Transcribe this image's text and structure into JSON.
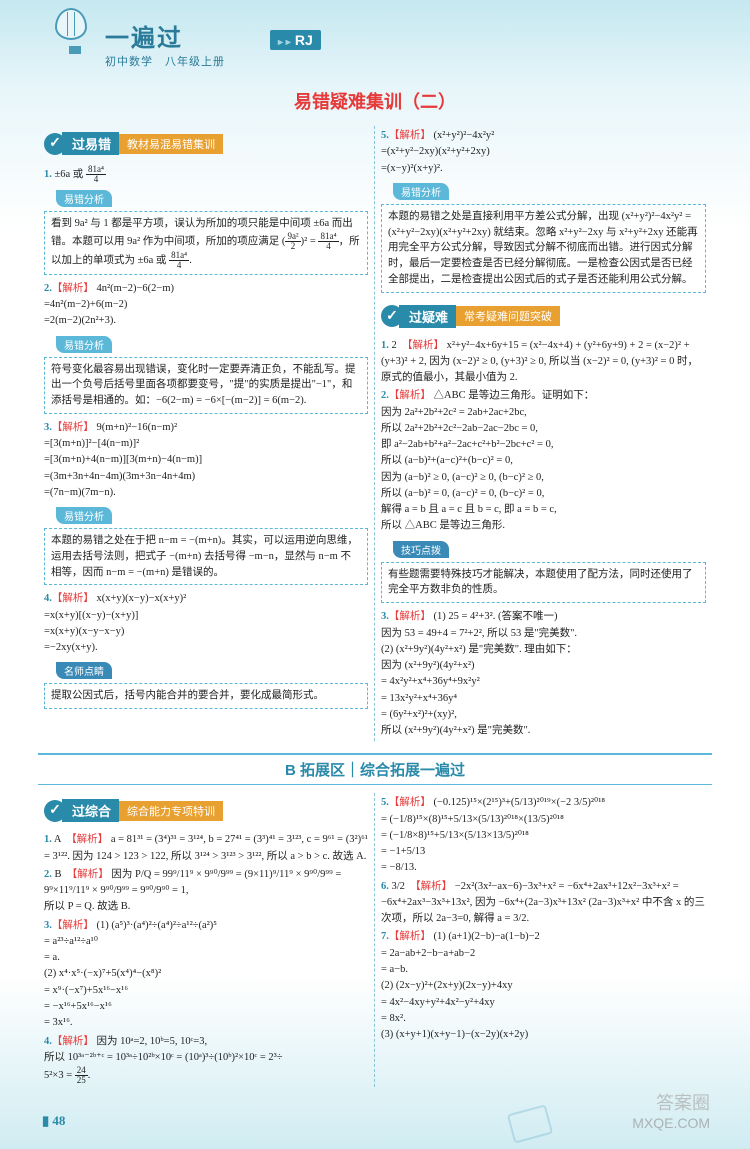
{
  "header": {
    "brand_main": "一遍过",
    "brand_sub": "初中数学　八年级上册",
    "badge": "RJ"
  },
  "page_title": "易错疑难集训（二）",
  "sections": {
    "mistakes": {
      "banner": "过易错",
      "sub": "教材易混易错集训"
    },
    "difficult": {
      "banner": "过疑难",
      "sub": "常考疑难问题突破"
    },
    "b_title": "B 拓展区｜综合拓展一遍过",
    "comprehensive": {
      "banner": "过综合",
      "sub": "综合能力专项特训"
    }
  },
  "tags": {
    "analysis": "易错分析",
    "teacher": "名师点睛",
    "skill": "技巧点拨"
  },
  "left": {
    "p1_ans": "1. ±6a 或 81a⁴/4",
    "box1": "看到 9a² 与 1 都是平方项，误认为所加的项只能是中间项 ±6a 而出错。本题可以用 9a² 作为中间项，所加的项应满足 (9a²/2)² = 81a⁴/4，所以加上的单项式为 ±6a 或 81a⁴/4。",
    "p2": "2.【解析】 4n²(m−2)−6(2−m)\n=4n²(m−2)+6(m−2)\n=2(m−2)(2n²+3).",
    "box2": "符号变化最容易出现错误，变化时一定要弄清正负，不能乱写。提出一个负号后括号里面各项都要变号，\"提\"的实质是提出\"−1\"，和添括号是相通的。如：−6(2−m) = −6×[−(m−2)] = 6(m−2).",
    "p3": "3.【解析】 9(m+n)²−16(n−m)²\n=[3(m+n)]²−[4(n−m)]²\n=[3(m+n)+4(n−m)][3(m+n)−4(n−m)]\n=(3m+3n+4n−4m)(3m+3n−4n+4m)\n=(7n−m)(7m−n).",
    "box3": "本题的易错之处在于把 n−m = −(m+n)。其实，可以运用逆向思维，运用去括号法则，把式子 −(m+n) 去括号得 −m−n，显然与 n−m 不相等，因而 n−m = −(m+n) 是错误的。",
    "p4": "4.【解析】 x(x+y)(x−y)−x(x+y)²\n=x(x+y)[(x−y)−(x+y)]\n=x(x+y)(x−y−x−y)\n=−2xy(x+y).",
    "box4": "提取公因式后，括号内能合并的要合并，要化成最简形式。"
  },
  "right": {
    "p5": "5.【解析】 (x²+y²)²−4x²y²\n=(x²+y²−2xy)(x²+y²+2xy)\n=(x−y)²(x+y)².",
    "box5": "本题的易错之处是直接利用平方差公式分解，出现 (x²+y²)²−4x²y² = (x²+y²−2xy)(x²+y²+2xy) 就结束。忽略 x²+y²−2xy 与 x²+y²+2xy 还能再用完全平方公式分解，导致因式分解不彻底而出错。进行因式分解时，最后一定要检查是否已经分解彻底。一是检查公因式是否已经全部提出，二是检查提出公因式后的式子是否还能利用公式分解。",
    "d1": "1. 2　【解析】 x²+y²−4x+6y+15 = (x²−4x+4) + (y²+6y+9) + 2 = (x−2)² + (y+3)² + 2, 因为 (x−2)² ≥ 0, (y+3)² ≥ 0, 所以当 (x−2)² = 0, (y+3)² = 0 时，原式的值最小，其最小值为 2.",
    "d2": "2.【解析】 △ABC 是等边三角形。证明如下：\n因为 2a²+2b²+2c² = 2ab+2ac+2bc,\n所以 2a²+2b²+2c²−2ab−2ac−2bc = 0,\n即 a²−2ab+b²+a²−2ac+c²+b²−2bc+c² = 0,\n所以 (a−b)²+(a−c)²+(b−c)² = 0,\n因为 (a−b)² ≥ 0, (a−c)² ≥ 0, (b−c)² ≥ 0,\n所以 (a−b)² = 0, (a−c)² = 0, (b−c)² = 0,\n解得 a = b 且 a = c 且 b = c, 即 a = b = c,\n所以 △ABC 是等边三角形.",
    "box_skill": "有些题需要特殊技巧才能解决，本题使用了配方法，同时还使用了完全平方数非负的性质。",
    "d3": "3.【解析】 (1) 25 = 4²+3². (答案不唯一)\n因为 53 = 49+4 = 7²+2², 所以 53 是\"完美数\".\n(2) (x²+9y²)(4y²+x²) 是\"完美数\". 理由如下：\n因为 (x²+9y²)(4y²+x²)\n= 4x²y²+x⁴+36y⁴+9x²y²\n= 13x²y²+x⁴+36y⁴\n= (6y²+x²)²+(xy)²,\n所以 (x²+9y²)(4y²+x²) 是\"完美数\"."
  },
  "comp_left": {
    "c1": "1. A　【解析】 a = 81³¹ = (3⁴)³¹ = 3¹²⁴, b = 27⁴¹ = (3³)⁴¹ = 3¹²³, c = 9⁶¹ = (3²)⁶¹ = 3¹²². 因为 124 > 123 > 122, 所以 3¹²⁴ > 3¹²³ > 3¹²², 所以 a > b > c. 故选 A.",
    "c2": "2. B　【解析】 因为 P/Q = 99⁹/11⁹ × 9⁹⁰/9⁹⁹ = (9×11)⁹/11⁹ × 9⁹⁰/9⁹⁹ = 9⁹×11⁹/11⁹ × 9⁹⁰/9⁹⁹ = 9⁹⁰/9⁹⁰ = 1,\n所以 P = Q. 故选 B.",
    "c3": "3.【解析】 (1) (a⁵)³·(a⁴)²÷(a⁴)²÷a¹²÷(a²)⁵\n= a²³÷a¹²÷a¹⁰\n= a.\n(2) x⁴·x⁵·(−x)⁷+5(x⁴)⁴−(x⁸)²\n= x⁹·(−x⁷)+5x¹⁶−x¹⁶\n= −x¹⁶+5x¹⁶−x¹⁶\n= 3x¹⁶.",
    "c4": "4.【解析】 因为 10ᵃ = 2, 10ᵇ = 5, 10ᶜ = 3,\n所以 10³ᵃ⁻²ᵇ⁺ᶜ = 10³ᵃ÷10²ᵇ×10ᶜ = (10ᵃ)³÷(10ᵇ)²×10ᶜ = 2³÷5²×3 = 24/25."
  },
  "comp_right": {
    "c5": "5.【解析】 (−0.125)¹⁵×(2¹⁵)³+(5/13)²⁰¹⁹×(−2 3/5)²⁰¹⁸\n= (−1/8)¹⁵×(8)¹⁵+5/13×(5/13)²⁰¹⁸×(13/5)²⁰¹⁸\n= (−1/8×8)¹⁵+5/13×(5/13×13/5)²⁰¹⁸\n= −1+5/13\n= −8/13.",
    "c6": "6. 3/2　【解析】 −2x²(3x²−ax−6)−3x³+x² = −6x⁴+2ax³+12x²−3x³+x² = −6x⁴+2ax³−3x³+13x², 因为 −6x⁴+(2a−3)x³+13x² (2a−3)x³+x² 中不含 x 的三次项，所以 2a−3=0, 解得 a = 3/2.",
    "c7": "7.【解析】 (1) (a+1)(2−b)−a(1−b)−2\n= 2a−ab+2−b−a+ab−2\n= a−b.\n(2) (2x−y)²+(2x+y)(2x−y)+4xy\n= 4x²−4xy+y²+4x²−y²+4xy\n= 8x².\n(3) (x+y+1)(x+y−1)−(x−2y)(x+2y)"
  },
  "footer": {
    "page": "48",
    "wm1": "答案圈",
    "wm2": "MXQE.COM"
  },
  "colors": {
    "bg_top": "#c5e8f0",
    "bg_bottom": "#d0ecf2",
    "primary": "#2a8aaa",
    "accent_red": "#e63a3a",
    "accent_orange": "#e8a030",
    "tag_blue": "#5cb8d8",
    "text": "#222222"
  }
}
